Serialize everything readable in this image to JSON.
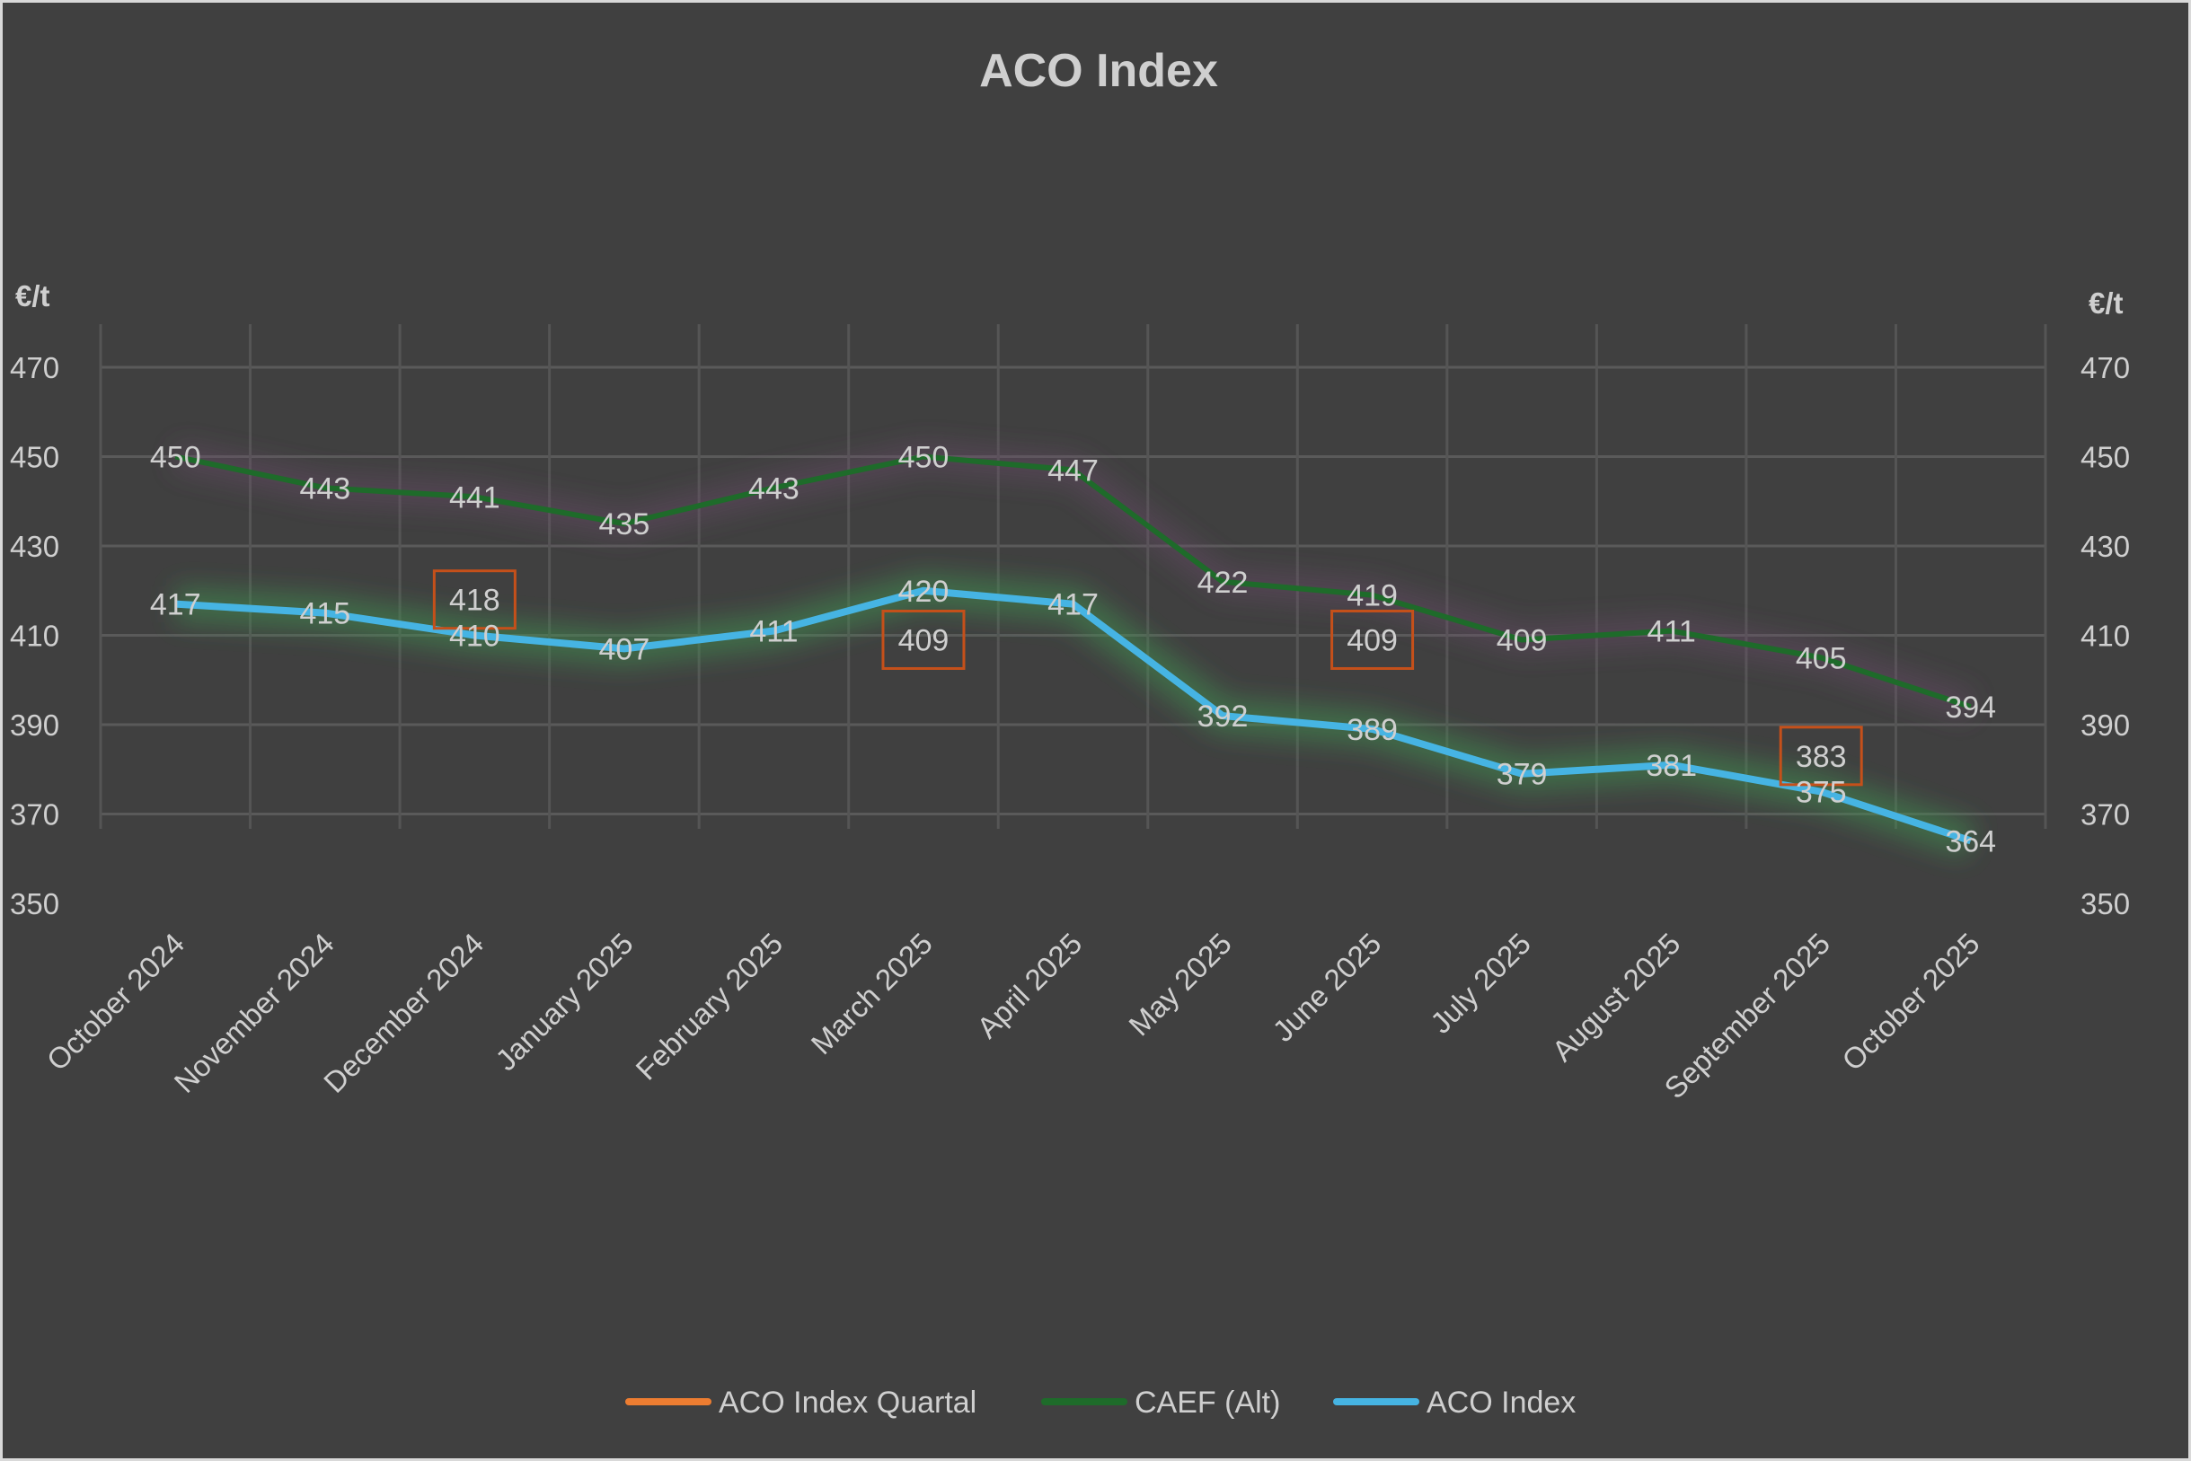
{
  "chart_data": {
    "type": "line",
    "title": "ACO Index",
    "ylabel_left": "€/t",
    "ylabel_right": "€/t",
    "ylim": [
      350,
      470
    ],
    "yticks": [
      350,
      370,
      390,
      410,
      430,
      450,
      470
    ],
    "grid": true,
    "legend_position": "bottom",
    "categories": [
      "October 2024",
      "November 2024",
      "December 2024",
      "January 2025",
      "February 2025",
      "March 2025",
      "April 2025",
      "May 2025",
      "June 2025",
      "July 2025",
      "August 2025",
      "September 2025",
      "October 2025"
    ],
    "series": [
      {
        "name": "ACO Index Quartal",
        "color": "#ED7D31",
        "values": [
          null,
          null,
          418,
          null,
          null,
          409,
          null,
          null,
          409,
          null,
          null,
          383,
          null
        ]
      },
      {
        "name": "CAEF (Alt)",
        "color": "#1E6B2A",
        "values": [
          450,
          443,
          441,
          435,
          443,
          450,
          447,
          422,
          419,
          409,
          411,
          405,
          394
        ]
      },
      {
        "name": "ACO Index",
        "color": "#46B4E3",
        "values": [
          417,
          415,
          410,
          407,
          411,
          420,
          417,
          392,
          389,
          379,
          381,
          375,
          364
        ]
      }
    ]
  }
}
